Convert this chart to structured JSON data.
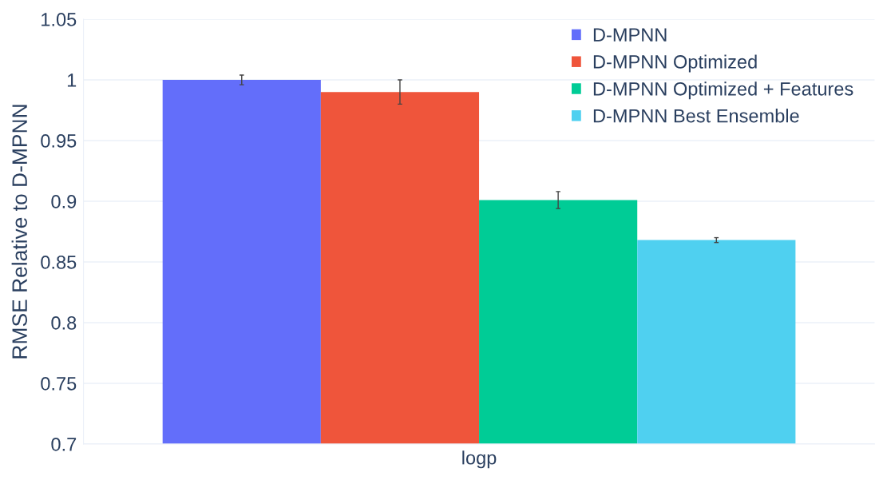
{
  "chart_data": {
    "type": "bar",
    "ylabel": "RMSE Relative to D-MPNN",
    "categories": [
      "logp"
    ],
    "series": [
      {
        "name": "D-MPNN",
        "color": "#636efa",
        "values": [
          1.0
        ],
        "errors": [
          0.004
        ]
      },
      {
        "name": "D-MPNN Optimized",
        "color": "#ef553b",
        "values": [
          0.99
        ],
        "errors": [
          0.01
        ]
      },
      {
        "name": "D-MPNN Optimized + Features",
        "color": "#00cc96",
        "values": [
          0.901
        ],
        "errors": [
          0.007
        ]
      },
      {
        "name": "D-MPNN Best Ensemble",
        "color": "#4fd0f0",
        "values": [
          0.868
        ],
        "errors": [
          0.002
        ]
      }
    ],
    "ylim": [
      0.7,
      1.05
    ],
    "yticks": [
      0.7,
      0.75,
      0.8,
      0.85,
      0.9,
      0.95,
      1,
      1.05
    ],
    "grid": "y",
    "legend": "top right"
  }
}
